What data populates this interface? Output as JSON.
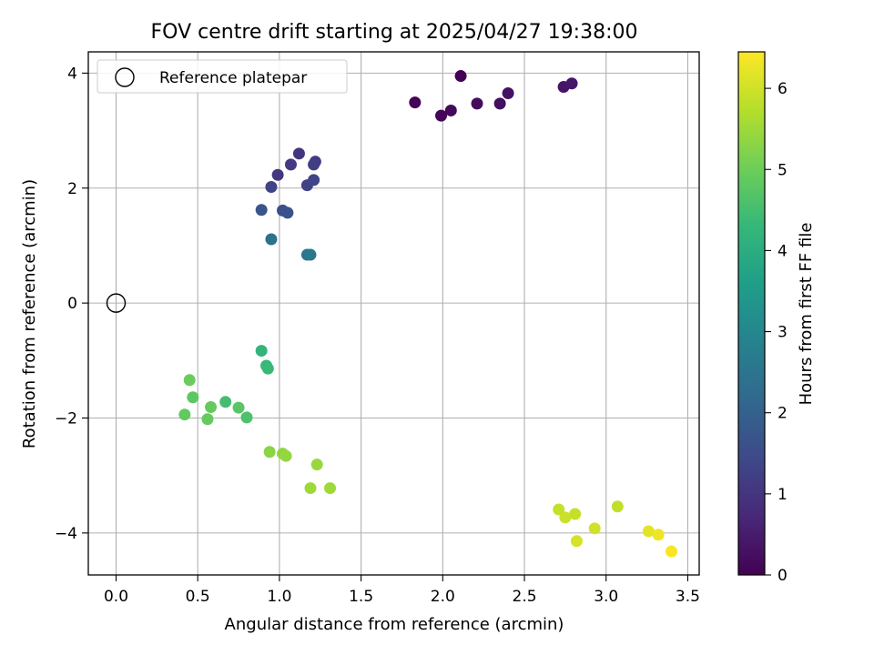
{
  "chart_data": {
    "type": "scatter",
    "title": "FOV centre drift starting at 2025/04/27 19:38:00",
    "xlabel": "Angular distance from reference (arcmin)",
    "ylabel": "Rotation from reference (arcmin)",
    "xlim": [
      -0.17,
      3.57
    ],
    "ylim": [
      -4.73,
      4.37
    ],
    "xticks": [
      0.0,
      0.5,
      1.0,
      1.5,
      2.0,
      2.5,
      3.0,
      3.5
    ],
    "xtick_labels": [
      "0.0",
      "0.5",
      "1.0",
      "1.5",
      "2.0",
      "2.5",
      "3.0",
      "3.5"
    ],
    "yticks": [
      -4,
      -2,
      0,
      2,
      4
    ],
    "ytick_labels": [
      "−4",
      "−2",
      "0",
      "2",
      "4"
    ],
    "grid": true,
    "legend": {
      "placement": "top-left",
      "entries": [
        "Reference platepar"
      ]
    },
    "reference_point": {
      "x": 0.0,
      "y": 0.0
    },
    "colorbar": {
      "label": "Hours from first FF file",
      "range": [
        0,
        6.45
      ],
      "ticks": [
        0,
        1,
        2,
        3,
        4,
        5,
        6
      ],
      "tick_labels": [
        "0",
        "1",
        "2",
        "3",
        "4",
        "5",
        "6"
      ],
      "colormap": "viridis"
    },
    "points": [
      {
        "x": 1.83,
        "y": 3.49,
        "hours": 0.05
      },
      {
        "x": 1.99,
        "y": 3.26,
        "hours": 0.1
      },
      {
        "x": 2.05,
        "y": 3.35,
        "hours": 0.15
      },
      {
        "x": 2.11,
        "y": 3.95,
        "hours": 0.0
      },
      {
        "x": 2.21,
        "y": 3.47,
        "hours": 0.2
      },
      {
        "x": 2.35,
        "y": 3.47,
        "hours": 0.25
      },
      {
        "x": 2.4,
        "y": 3.65,
        "hours": 0.3
      },
      {
        "x": 2.74,
        "y": 3.76,
        "hours": 0.35
      },
      {
        "x": 2.79,
        "y": 3.82,
        "hours": 0.4
      },
      {
        "x": 1.12,
        "y": 2.6,
        "hours": 1.0
      },
      {
        "x": 1.07,
        "y": 2.41,
        "hours": 1.1
      },
      {
        "x": 1.22,
        "y": 2.46,
        "hours": 1.15
      },
      {
        "x": 1.21,
        "y": 2.41,
        "hours": 1.2
      },
      {
        "x": 0.99,
        "y": 2.23,
        "hours": 1.05
      },
      {
        "x": 0.95,
        "y": 2.02,
        "hours": 1.3
      },
      {
        "x": 1.17,
        "y": 2.05,
        "hours": 1.25
      },
      {
        "x": 1.21,
        "y": 2.14,
        "hours": 1.35
      },
      {
        "x": 0.89,
        "y": 1.62,
        "hours": 1.7
      },
      {
        "x": 1.02,
        "y": 1.61,
        "hours": 1.6
      },
      {
        "x": 1.05,
        "y": 1.57,
        "hours": 1.65
      },
      {
        "x": 0.95,
        "y": 1.11,
        "hours": 2.4
      },
      {
        "x": 1.17,
        "y": 0.84,
        "hours": 2.5
      },
      {
        "x": 1.19,
        "y": 0.84,
        "hours": 2.55
      },
      {
        "x": 0.89,
        "y": -0.83,
        "hours": 4.2
      },
      {
        "x": 0.92,
        "y": -1.09,
        "hours": 4.3
      },
      {
        "x": 0.93,
        "y": -1.14,
        "hours": 4.35
      },
      {
        "x": 0.45,
        "y": -1.34,
        "hours": 4.95
      },
      {
        "x": 0.47,
        "y": -1.64,
        "hours": 4.8
      },
      {
        "x": 0.42,
        "y": -1.94,
        "hours": 4.85
      },
      {
        "x": 0.56,
        "y": -2.02,
        "hours": 4.9
      },
      {
        "x": 0.58,
        "y": -1.81,
        "hours": 4.9
      },
      {
        "x": 0.67,
        "y": -1.72,
        "hours": 4.5
      },
      {
        "x": 0.75,
        "y": -1.82,
        "hours": 4.75
      },
      {
        "x": 0.8,
        "y": -1.99,
        "hours": 4.6
      },
      {
        "x": 0.94,
        "y": -2.59,
        "hours": 5.3
      },
      {
        "x": 1.02,
        "y": -2.62,
        "hours": 5.35
      },
      {
        "x": 1.04,
        "y": -2.66,
        "hours": 5.4
      },
      {
        "x": 1.23,
        "y": -2.81,
        "hours": 5.45
      },
      {
        "x": 1.19,
        "y": -3.22,
        "hours": 5.5
      },
      {
        "x": 1.31,
        "y": -3.22,
        "hours": 5.5
      },
      {
        "x": 2.71,
        "y": -3.59,
        "hours": 5.9
      },
      {
        "x": 2.75,
        "y": -3.73,
        "hours": 5.95
      },
      {
        "x": 2.81,
        "y": -3.67,
        "hours": 5.9
      },
      {
        "x": 2.82,
        "y": -4.14,
        "hours": 6.05
      },
      {
        "x": 2.93,
        "y": -3.92,
        "hours": 6.0
      },
      {
        "x": 3.07,
        "y": -3.54,
        "hours": 5.85
      },
      {
        "x": 3.26,
        "y": -3.97,
        "hours": 6.2
      },
      {
        "x": 3.32,
        "y": -4.03,
        "hours": 6.3
      },
      {
        "x": 3.4,
        "y": -4.32,
        "hours": 6.4
      }
    ]
  }
}
